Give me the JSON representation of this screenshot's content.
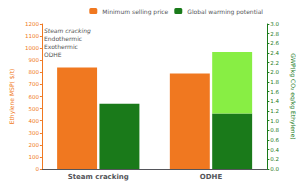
{
  "chart_data": {
    "type": "bar",
    "categories": [
      "Steam cracking",
      "ODHE"
    ],
    "series": [
      {
        "name": "Minimum selling price",
        "color": "#F07820",
        "values": [
          840,
          790
        ]
      },
      {
        "name": "Global warming potential",
        "color": "#1A7A1A",
        "values": [
          1.35,
          1.15
        ],
        "axis": "y2"
      },
      {
        "color": "#88EE44",
        "values": [
          0.0,
          1.27
        ],
        "axis": "y2"
      }
    ],
    "ylabel": "Ethylene MSP( $/t)",
    "y2label": "GWP(kg CO₂ eq/kg Ethylene)",
    "ylim": [
      0,
      1200
    ],
    "yticks": [
      0,
      100,
      200,
      300,
      400,
      500,
      600,
      700,
      800,
      900,
      1000,
      1100,
      1200
    ],
    "y2lim": [
      0.0,
      3.0
    ],
    "y2ticks": [
      {
        "value": 0.0,
        "label": "0.0"
      },
      0.2,
      0.4,
      0.6,
      0.8,
      {
        "value": 1.0,
        "label": "1.0"
      },
      1.2,
      1.4,
      1.6,
      1.8,
      {
        "value": 2.0,
        "label": "2.0"
      },
      2.2,
      2.4,
      2.6,
      2.8,
      {
        "value": 3.0,
        "label": "3.0"
      }
    ],
    "stacked": true,
    "legend": "upper right",
    "grid": false,
    "annotations": [
      "Steam cracking",
      "Endothermic",
      "Exothermic",
      "ODHE"
    ]
  }
}
